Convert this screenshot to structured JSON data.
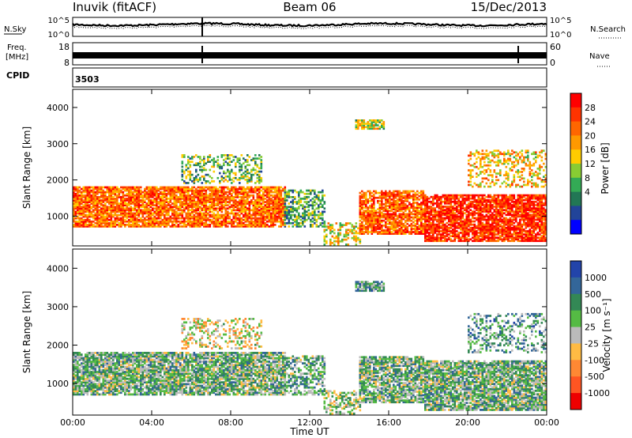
{
  "header": {
    "station": "Inuvik (fitACF)",
    "beam": "Beam 06",
    "date": "15/Dec/2013"
  },
  "panels_top": {
    "nsky_label": "N.Sky",
    "nsky_ticks": [
      "10^5",
      "10^0"
    ],
    "nsearch_label": "N.Search",
    "nsearch_ticks": [
      "10^5",
      "10^0"
    ],
    "freq_label_1": "Freq.",
    "freq_label_2": "[MHz]",
    "freq_ticks": [
      "18",
      "8"
    ],
    "nave_label": "Nave",
    "nave_ticks": [
      "60",
      "0"
    ],
    "cpid_label": "CPID",
    "cpid_value": "3503"
  },
  "chart_data": [
    {
      "type": "heatmap",
      "name": "power",
      "ylabel": "Slant Range [km]",
      "ylim": [
        180,
        4500
      ],
      "y_ticks": [
        1000,
        2000,
        3000,
        4000
      ],
      "x_ticks": [
        "00:00",
        "04:00",
        "08:00",
        "12:00",
        "16:00",
        "20:00",
        "00:00"
      ],
      "colorbar_label": "Power [dB]",
      "colorbar_ticks": [
        "28",
        "24",
        "20",
        "16",
        "12",
        "8",
        "4"
      ],
      "colorbar_colors": [
        "#ff0000",
        "#ff3300",
        "#ff6600",
        "#ff9900",
        "#ffcc00",
        "#88cc33",
        "#33aa55",
        "#227755",
        "#224499",
        "#0000ff"
      ],
      "scatter_regions": [
        {
          "t0": 0.0,
          "t1": 10.7,
          "r0": 700,
          "r1": 1800,
          "density": 0.85,
          "level": 0.75
        },
        {
          "t0": 10.7,
          "t1": 12.7,
          "r0": 700,
          "r1": 1700,
          "density": 0.55,
          "level": 0.35
        },
        {
          "t0": 12.7,
          "t1": 14.5,
          "r0": 200,
          "r1": 800,
          "density": 0.5,
          "level": 0.55
        },
        {
          "t0": 14.5,
          "t1": 17.8,
          "r0": 500,
          "r1": 1700,
          "density": 0.8,
          "level": 0.78
        },
        {
          "t0": 17.8,
          "t1": 24.0,
          "r0": 300,
          "r1": 1600,
          "density": 0.85,
          "level": 0.88
        },
        {
          "t0": 5.5,
          "t1": 9.5,
          "r0": 1900,
          "r1": 2700,
          "density": 0.35,
          "level": 0.4
        },
        {
          "t0": 14.3,
          "t1": 15.7,
          "r0": 3400,
          "r1": 3650,
          "density": 0.8,
          "level": 0.5
        },
        {
          "t0": 20.0,
          "t1": 24.0,
          "r0": 1800,
          "r1": 2800,
          "density": 0.35,
          "level": 0.6
        }
      ]
    },
    {
      "type": "heatmap",
      "name": "velocity",
      "xlabel": "Time UT",
      "ylabel": "Slant Range [km]",
      "ylim": [
        180,
        4500
      ],
      "y_ticks": [
        1000,
        2000,
        3000,
        4000
      ],
      "x_ticks": [
        "00:00",
        "04:00",
        "08:00",
        "12:00",
        "16:00",
        "20:00",
        "00:00"
      ],
      "colorbar_label": "Velocity [m s⁻¹]",
      "colorbar_ticks": [
        "1000",
        "500",
        "100",
        "25",
        "-25",
        "-100",
        "-500",
        "-1000"
      ],
      "colorbar_colors": [
        "#2244aa",
        "#336699",
        "#338855",
        "#55bb44",
        "#bbbbbb",
        "#ffbb44",
        "#ff8833",
        "#ff5522",
        "#ee0000"
      ],
      "scatter_regions": [
        {
          "t0": 0.0,
          "t1": 10.7,
          "r0": 700,
          "r1": 1800,
          "density": 0.85,
          "level": 0.62
        },
        {
          "t0": 10.7,
          "t1": 12.7,
          "r0": 700,
          "r1": 1700,
          "density": 0.55,
          "level": 0.65
        },
        {
          "t0": 12.7,
          "t1": 14.5,
          "r0": 200,
          "r1": 800,
          "density": 0.5,
          "level": 0.55
        },
        {
          "t0": 14.5,
          "t1": 17.8,
          "r0": 500,
          "r1": 1700,
          "density": 0.8,
          "level": 0.62
        },
        {
          "t0": 17.8,
          "t1": 24.0,
          "r0": 300,
          "r1": 1600,
          "density": 0.85,
          "level": 0.62
        },
        {
          "t0": 5.5,
          "t1": 9.5,
          "r0": 1900,
          "r1": 2700,
          "density": 0.35,
          "level": 0.45
        },
        {
          "t0": 14.3,
          "t1": 15.7,
          "r0": 3400,
          "r1": 3650,
          "density": 0.8,
          "level": 0.7
        },
        {
          "t0": 20.0,
          "t1": 24.0,
          "r0": 1800,
          "r1": 2800,
          "density": 0.35,
          "level": 0.68
        }
      ]
    }
  ]
}
